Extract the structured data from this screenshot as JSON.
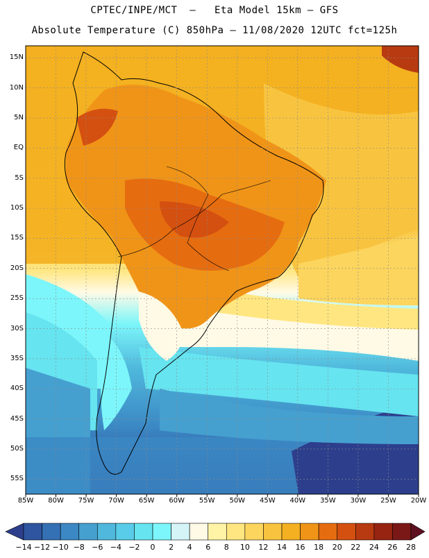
{
  "header": {
    "line1": "CPTEC/INPE/MCT  –   Eta Model 15km – GFS",
    "line2": "Absolute Temperature (C) 850hPa – 11/08/2020 12UTC fct=125h"
  },
  "map": {
    "lat_labels": [
      "15N",
      "10N",
      "5N",
      "EQ",
      "5S",
      "10S",
      "15S",
      "20S",
      "25S",
      "30S",
      "35S",
      "40S",
      "45S",
      "50S",
      "55S"
    ],
    "lat_values": [
      15,
      10,
      5,
      0,
      -5,
      -10,
      -15,
      -20,
      -25,
      -30,
      -35,
      -40,
      -45,
      -50,
      -55
    ],
    "lon_labels": [
      "85W",
      "80W",
      "75W",
      "70W",
      "65W",
      "60W",
      "55W",
      "50W",
      "45W",
      "40W",
      "35W",
      "30W",
      "25W",
      "20W"
    ],
    "lon_values": [
      -85,
      -80,
      -75,
      -70,
      -65,
      -60,
      -55,
      -50,
      -45,
      -40,
      -35,
      -30,
      -25,
      -20
    ],
    "extent": {
      "lon_min": -85,
      "lon_max": -20,
      "lat_min": -57.5,
      "lat_max": 17
    }
  },
  "colorbar": {
    "labels": [
      "-14",
      "-12",
      "-10",
      "-8",
      "-6",
      "-4",
      "-2",
      "0",
      "2",
      "4",
      "6",
      "8",
      "10",
      "12",
      "14",
      "16",
      "18",
      "20",
      "22",
      "24",
      "26",
      "28"
    ],
    "colors": [
      "#2d3f8c",
      "#2f55a0",
      "#3470b4",
      "#3b88c4",
      "#45a0d0",
      "#4fb8dc",
      "#58cce8",
      "#66e4f0",
      "#7cf6fa",
      "#d4f4f8",
      "#fffae6",
      "#fff4a6",
      "#ffe680",
      "#fcd55e",
      "#f8c440",
      "#f4b020",
      "#f09418",
      "#e66c10",
      "#d45010",
      "#b83a10",
      "#962410",
      "#7a1818",
      "#5e1020"
    ]
  }
}
